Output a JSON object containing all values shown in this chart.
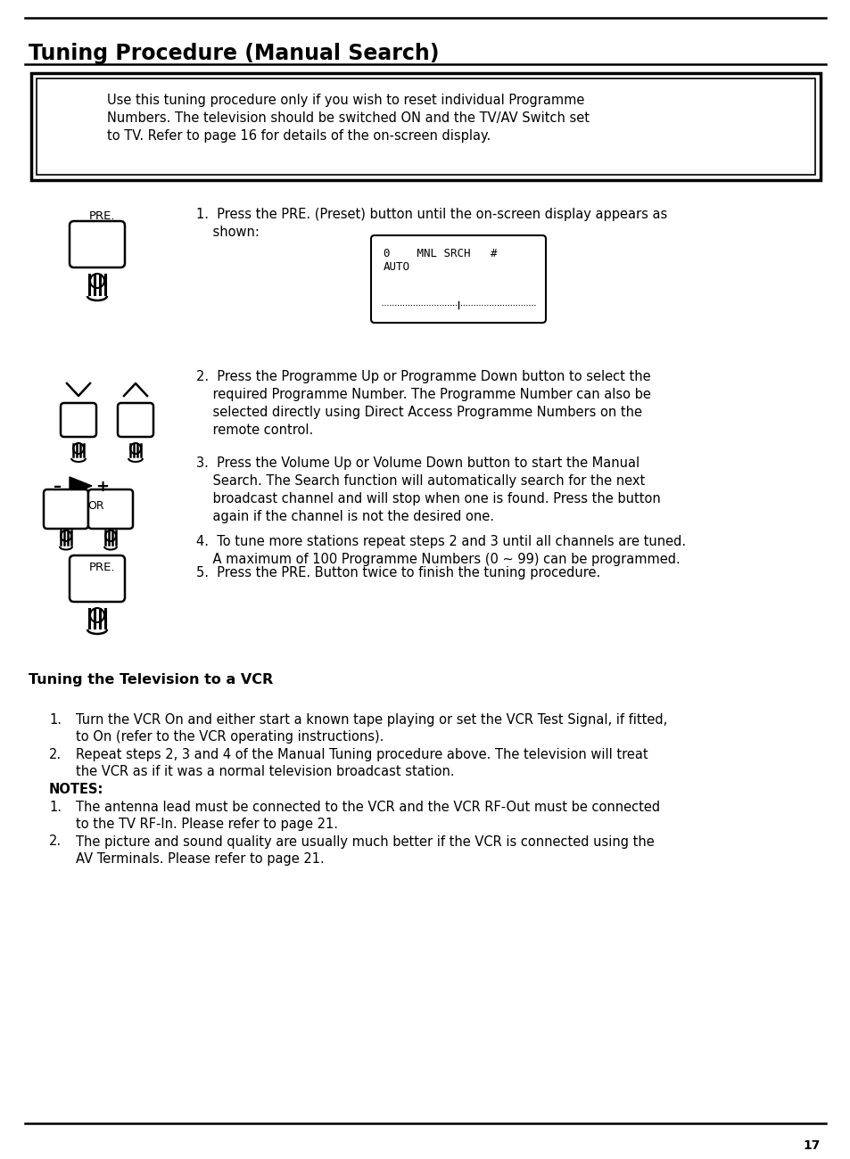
{
  "title": "Tuning Procedure (Manual Search)",
  "notice_lines": [
    "Use this tuning procedure only if you wish to reset individual Programme",
    "Numbers. The television should be switched ON and the TV/AV Switch set",
    "to TV. Refer to page 16 for details of the on-screen display."
  ],
  "step1_line1": "1.  Press the PRE. (Preset) button until the on-screen display appears as",
  "step1_line2": "    shown:",
  "screen_line1": "0    MNL SRCH   #",
  "screen_line2": "AUTO",
  "step2_lines": [
    "2.  Press the Programme Up or Programme Down button to select the",
    "    required Programme Number. The Programme Number can also be",
    "    selected directly using Direct Access Programme Numbers on the",
    "    remote control."
  ],
  "step3_lines": [
    "3.  Press the Volume Up or Volume Down button to start the Manual",
    "    Search. The Search function will automatically search for the next",
    "    broadcast channel and will stop when one is found. Press the button",
    "    again if the channel is not the desired one."
  ],
  "step4_lines": [
    "4.  To tune more stations repeat steps 2 and 3 until all channels are tuned.",
    "    A maximum of 100 Programme Numbers (0 ~ 99) can be programmed."
  ],
  "step5_line": "5.  Press the PRE. Button twice to finish the tuning procedure.",
  "vcr_title": "Tuning the Television to a VCR",
  "vcr_1a": "1.    Turn the VCR On and either start a known tape playing or set the VCR Test Signal, if fitted,",
  "vcr_1b": "      to On (refer to the VCR operating instructions).",
  "vcr_2a": "2.    Repeat steps 2, 3 and 4 of the Manual Tuning procedure above. The television will treat",
  "vcr_2b": "      the VCR as if it was a normal television broadcast station.",
  "notes_label": "NOTES:",
  "note_1a": "1.    The antenna lead must be connected to the VCR and the VCR RF-Out must be connected",
  "note_1b": "      to the TV RF-In. Please refer to page 21.",
  "note_2a": "2.    The picture and sound quality are usually much better if the VCR is connected using the",
  "note_2b": "      AV Terminals. Please refer to page 21.",
  "page_num": "17",
  "bg": "#ffffff"
}
